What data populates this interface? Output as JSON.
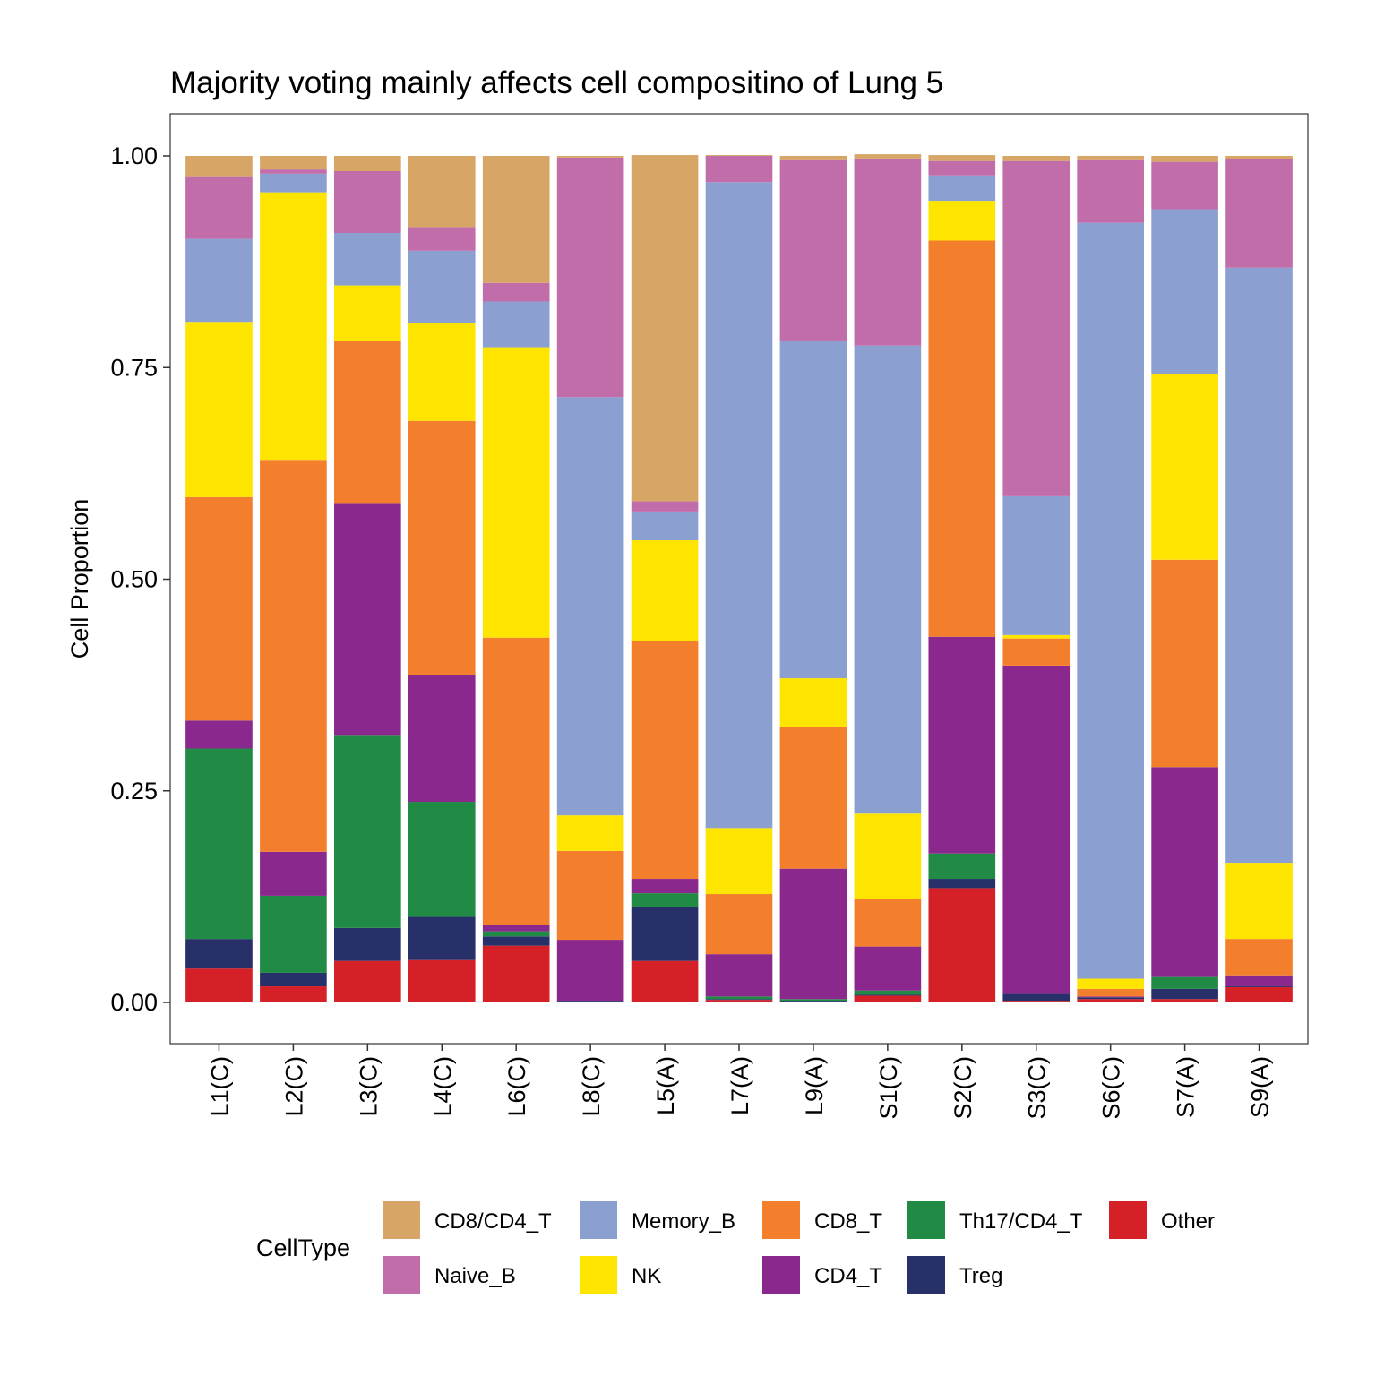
{
  "chart_data": {
    "type": "bar",
    "stacked": true,
    "title": "Majority voting mainly affects cell compositino of Lung 5",
    "xlabel": "",
    "ylabel": "Cell Proportion",
    "ylim": [
      -0.05,
      1.05
    ],
    "yticks": [
      "0.00",
      "0.25",
      "0.50",
      "0.75",
      "1.00"
    ],
    "ytick_values": [
      0,
      0.25,
      0.5,
      0.75,
      1.0
    ],
    "grid": false,
    "legend_position": "bottom",
    "legend_title": "CellType",
    "categories": [
      "L1(C)",
      "L2(C)",
      "L3(C)",
      "L4(C)",
      "L6(C)",
      "L8(C)",
      "L5(A)",
      "L7(A)",
      "L9(A)",
      "S1(C)",
      "S2(C)",
      "S3(C)",
      "S6(C)",
      "S7(A)",
      "S9(A)"
    ],
    "series": [
      {
        "name": "Other",
        "color": "#D62027",
        "values": [
          0.04,
          0.019,
          0.049,
          0.05,
          0.067,
          0.0,
          0.049,
          0.003,
          0.001,
          0.008,
          0.135,
          0.002,
          0.004,
          0.004,
          0.018
        ]
      },
      {
        "name": "Treg",
        "color": "#283069",
        "values": [
          0.035,
          0.016,
          0.039,
          0.051,
          0.011,
          0.002,
          0.064,
          0.001,
          0.001,
          0.001,
          0.011,
          0.008,
          0.002,
          0.012,
          0.001
        ]
      },
      {
        "name": "Th17/CD4_T",
        "color": "#218B45",
        "values": [
          0.225,
          0.091,
          0.227,
          0.136,
          0.006,
          0.0,
          0.016,
          0.003,
          0.002,
          0.005,
          0.03,
          0.0,
          0.0,
          0.014,
          0.0
        ]
      },
      {
        "name": "CD4_T",
        "color": "#8B288E",
        "values": [
          0.033,
          0.052,
          0.274,
          0.15,
          0.008,
          0.072,
          0.017,
          0.05,
          0.154,
          0.052,
          0.256,
          0.388,
          0.001,
          0.248,
          0.013
        ]
      },
      {
        "name": "CD8_T",
        "color": "#F37F2D",
        "values": [
          0.264,
          0.462,
          0.192,
          0.3,
          0.339,
          0.105,
          0.281,
          0.071,
          0.168,
          0.056,
          0.468,
          0.032,
          0.009,
          0.245,
          0.043
        ]
      },
      {
        "name": "NK",
        "color": "#FEE500",
        "values": [
          0.207,
          0.317,
          0.066,
          0.116,
          0.343,
          0.042,
          0.119,
          0.078,
          0.057,
          0.101,
          0.047,
          0.004,
          0.012,
          0.219,
          0.09
        ]
      },
      {
        "name": "Memory_B",
        "color": "#8BA0D1",
        "values": [
          0.098,
          0.022,
          0.062,
          0.085,
          0.054,
          0.494,
          0.034,
          0.763,
          0.398,
          0.553,
          0.03,
          0.164,
          0.893,
          0.195,
          0.703
        ]
      },
      {
        "name": "Naive_B",
        "color": "#C16DAA",
        "values": [
          0.073,
          0.005,
          0.073,
          0.028,
          0.022,
          0.283,
          0.012,
          0.031,
          0.214,
          0.221,
          0.017,
          0.396,
          0.074,
          0.056,
          0.128
        ]
      },
      {
        "name": "CD8/CD4_T",
        "color": "#D7A667",
        "values": [
          0.025,
          0.016,
          0.018,
          0.084,
          0.15,
          0.002,
          0.409,
          0.001,
          0.005,
          0.005,
          0.007,
          0.006,
          0.005,
          0.007,
          0.004
        ]
      }
    ],
    "legend_rows": [
      [
        "CD8/CD4_T",
        "Memory_B",
        "CD8_T",
        "Th17/CD4_T",
        "Other"
      ],
      [
        "Naive_B",
        "NK",
        "CD4_T",
        "Treg"
      ]
    ]
  }
}
